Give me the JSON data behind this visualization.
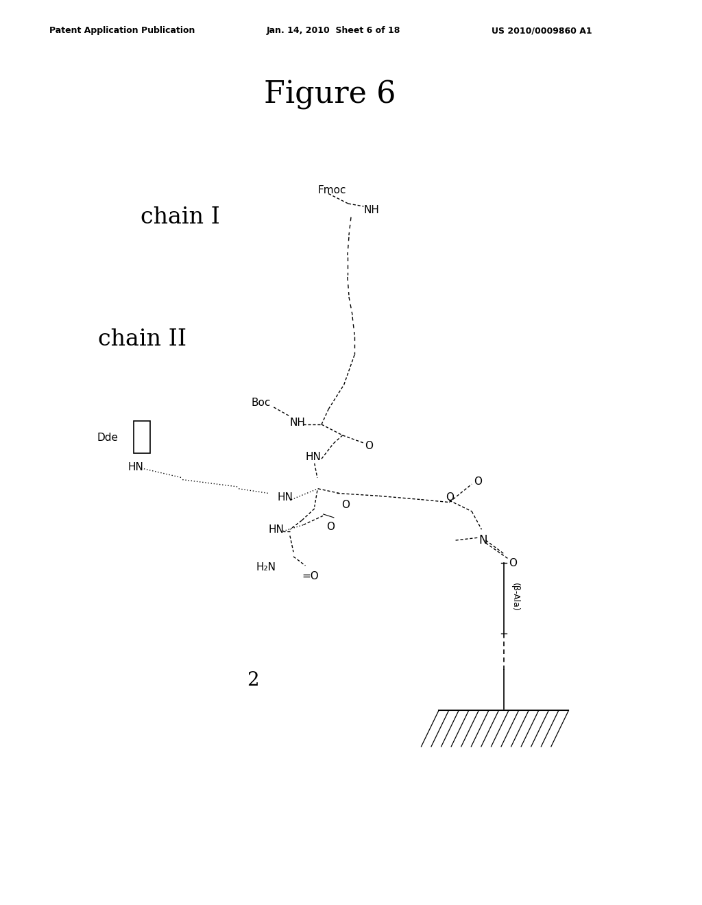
{
  "title": "Figure 6",
  "header_left": "Patent Application Publication",
  "header_center": "Jan. 14, 2010  Sheet 6 of 18",
  "header_right": "US 2010/0009860 A1",
  "bg_color": "#ffffff",
  "fig_label": "2",
  "chain_I_label": "chain I",
  "chain_II_label": "chain II"
}
